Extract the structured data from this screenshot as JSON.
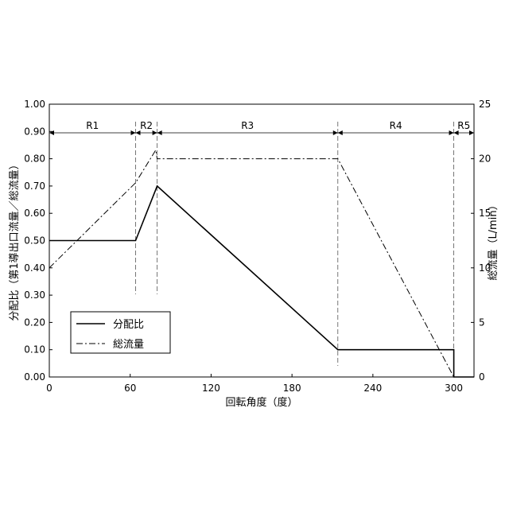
{
  "chart_data": {
    "type": "line",
    "xlabel": "回転角度（度）",
    "ylabel_left": "分配比（第1導出口流量／総流量）",
    "ylabel_right": "総流量（L/min）",
    "xlim": [
      0,
      315
    ],
    "ylim_left": [
      0,
      1.0
    ],
    "ylim_right": [
      0,
      25
    ],
    "x_ticks": [
      0,
      60,
      120,
      180,
      240,
      300
    ],
    "y_left_ticks": [
      "0.00",
      "0.10",
      "0.20",
      "0.30",
      "0.40",
      "0.50",
      "0.60",
      "0.70",
      "0.80",
      "0.90",
      "1.00"
    ],
    "y_right_ticks": [
      "0",
      "5",
      "10",
      "15",
      "20",
      "25"
    ],
    "grid": false,
    "legend_position": "lower-left",
    "series": [
      {
        "name": "分配比",
        "axis": "left",
        "style": "solid",
        "x": [
          0,
          64,
          80,
          214,
          300,
          300,
          315
        ],
        "y": [
          0.5,
          0.5,
          0.7,
          0.1,
          0.1,
          0.0,
          0.0
        ]
      },
      {
        "name": "総流量",
        "axis": "right",
        "style": "dashdot",
        "x": [
          0,
          64,
          79,
          80,
          214,
          300,
          315
        ],
        "y": [
          10,
          17.8,
          20.8,
          20,
          20,
          0,
          0
        ]
      }
    ],
    "regions": [
      {
        "label": "R1",
        "start": 0,
        "end": 64
      },
      {
        "label": "R2",
        "start": 64,
        "end": 80
      },
      {
        "label": "R3",
        "start": 80,
        "end": 214
      },
      {
        "label": "R4",
        "start": 214,
        "end": 300
      },
      {
        "label": "R5",
        "start": 300,
        "end": 315
      }
    ],
    "region_boundaries": [
      64,
      80,
      214,
      300
    ]
  }
}
